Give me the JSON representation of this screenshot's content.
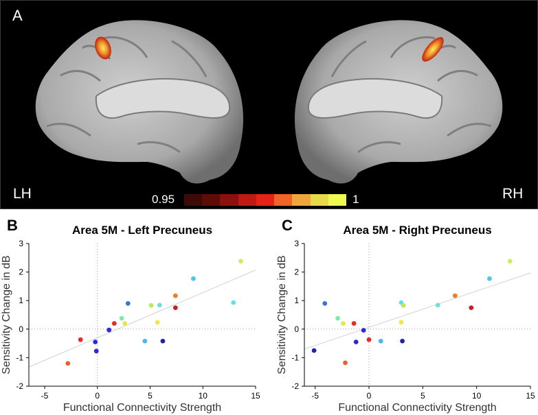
{
  "brain": {
    "panel_letter": "A",
    "left_label": "LH",
    "right_label": "RH",
    "colorbar": {
      "min_label": "0.95",
      "max_label": "1",
      "colors": [
        "#3d0a06",
        "#5f0c08",
        "#8c110c",
        "#bf1a12",
        "#e62317",
        "#f06527",
        "#eea63d",
        "#e7d94a",
        "#eef94f"
      ]
    }
  },
  "chart_data": [
    {
      "panel_letter": "B",
      "type": "scatter",
      "title": "Area 5M - Left Precuneus",
      "xlabel": "Functional Connectivity Strength",
      "ylabel": "Sensitivity Change in dB",
      "xlim": [
        -6.5,
        15
      ],
      "ylim": [
        -2,
        3
      ],
      "xticks": [
        -5,
        0,
        5,
        10,
        15
      ],
      "yticks": [
        -2,
        -1,
        0,
        1,
        2,
        3
      ],
      "xtick_labels": [
        "-5",
        "0",
        "5",
        "10",
        "15"
      ],
      "ytick_labels": [
        "-2",
        "-1",
        "0",
        "1",
        "2",
        "3"
      ],
      "fit_line": {
        "x": [
          -6.5,
          15
        ],
        "y": [
          -1.33,
          2.07
        ]
      },
      "points": [
        {
          "x": -2.8,
          "y": -1.2,
          "color": "#e8622c"
        },
        {
          "x": -1.6,
          "y": -0.37,
          "color": "#e62a2a"
        },
        {
          "x": -0.2,
          "y": -0.45,
          "color": "#2b2bd1"
        },
        {
          "x": -0.1,
          "y": -0.77,
          "color": "#2b2bd1"
        },
        {
          "x": 1.1,
          "y": -0.03,
          "color": "#2b2bd1"
        },
        {
          "x": 1.6,
          "y": 0.2,
          "color": "#e62a2a"
        },
        {
          "x": 2.3,
          "y": 0.38,
          "color": "#7fe8b0"
        },
        {
          "x": 2.6,
          "y": 0.2,
          "color": "#e5e84d"
        },
        {
          "x": 2.9,
          "y": 0.9,
          "color": "#3c6fe0"
        },
        {
          "x": 4.5,
          "y": -0.42,
          "color": "#4fb4f0"
        },
        {
          "x": 5.1,
          "y": 0.83,
          "color": "#b9ea5a"
        },
        {
          "x": 5.7,
          "y": 0.24,
          "color": "#f3e64a"
        },
        {
          "x": 5.9,
          "y": 0.84,
          "color": "#6fe0d8"
        },
        {
          "x": 6.2,
          "y": -0.42,
          "color": "#2222a8"
        },
        {
          "x": 7.4,
          "y": 1.17,
          "color": "#ee7d27"
        },
        {
          "x": 7.4,
          "y": 0.75,
          "color": "#c9201f"
        },
        {
          "x": 9.1,
          "y": 1.77,
          "color": "#4ec6f2"
        },
        {
          "x": 12.9,
          "y": 0.93,
          "color": "#65def2"
        },
        {
          "x": 13.6,
          "y": 2.38,
          "color": "#c8ef5e"
        }
      ]
    },
    {
      "panel_letter": "C",
      "type": "scatter",
      "title": "Area 5M - Right Precuneus",
      "xlabel": "Functional Connectivity Strength",
      "ylabel": "Sensitivity Change in dB",
      "xlim": [
        -6,
        15
      ],
      "ylim": [
        -2,
        3
      ],
      "xticks": [
        -5,
        0,
        5,
        10,
        15
      ],
      "yticks": [
        -2,
        -1,
        0,
        1,
        2,
        3
      ],
      "xtick_labels": [
        "-5",
        "0",
        "5",
        "10",
        "15"
      ],
      "ytick_labels": [
        "-2",
        "-1",
        "0",
        "1",
        "2",
        "3"
      ],
      "fit_line": {
        "x": [
          -6,
          15
        ],
        "y": [
          -0.7,
          1.97
        ]
      },
      "points": [
        {
          "x": -5.1,
          "y": -0.75,
          "color": "#2222a8"
        },
        {
          "x": -4.1,
          "y": 0.9,
          "color": "#3c6fe0"
        },
        {
          "x": -2.9,
          "y": 0.38,
          "color": "#7fe8b0"
        },
        {
          "x": -2.4,
          "y": 0.2,
          "color": "#e5e84d"
        },
        {
          "x": -2.2,
          "y": -1.18,
          "color": "#e8622c"
        },
        {
          "x": -1.4,
          "y": 0.2,
          "color": "#e62a2a"
        },
        {
          "x": -1.2,
          "y": -0.45,
          "color": "#2b2bd1"
        },
        {
          "x": -0.5,
          "y": -0.04,
          "color": "#2b2bd1"
        },
        {
          "x": 0.0,
          "y": -0.37,
          "color": "#e62a2a"
        },
        {
          "x": 1.1,
          "y": -0.42,
          "color": "#4fb4f0"
        },
        {
          "x": 3.0,
          "y": 0.24,
          "color": "#f3e64a"
        },
        {
          "x": 3.0,
          "y": 0.93,
          "color": "#65def2"
        },
        {
          "x": 3.2,
          "y": 0.83,
          "color": "#b9ea5a"
        },
        {
          "x": 3.1,
          "y": -0.42,
          "color": "#2222a8"
        },
        {
          "x": 6.4,
          "y": 0.84,
          "color": "#6fe0d8"
        },
        {
          "x": 8.0,
          "y": 1.17,
          "color": "#ee7d27"
        },
        {
          "x": 9.5,
          "y": 0.75,
          "color": "#c9201f"
        },
        {
          "x": 11.2,
          "y": 1.77,
          "color": "#4ec6f2"
        },
        {
          "x": 13.1,
          "y": 2.38,
          "color": "#c8ef5e"
        }
      ]
    }
  ]
}
